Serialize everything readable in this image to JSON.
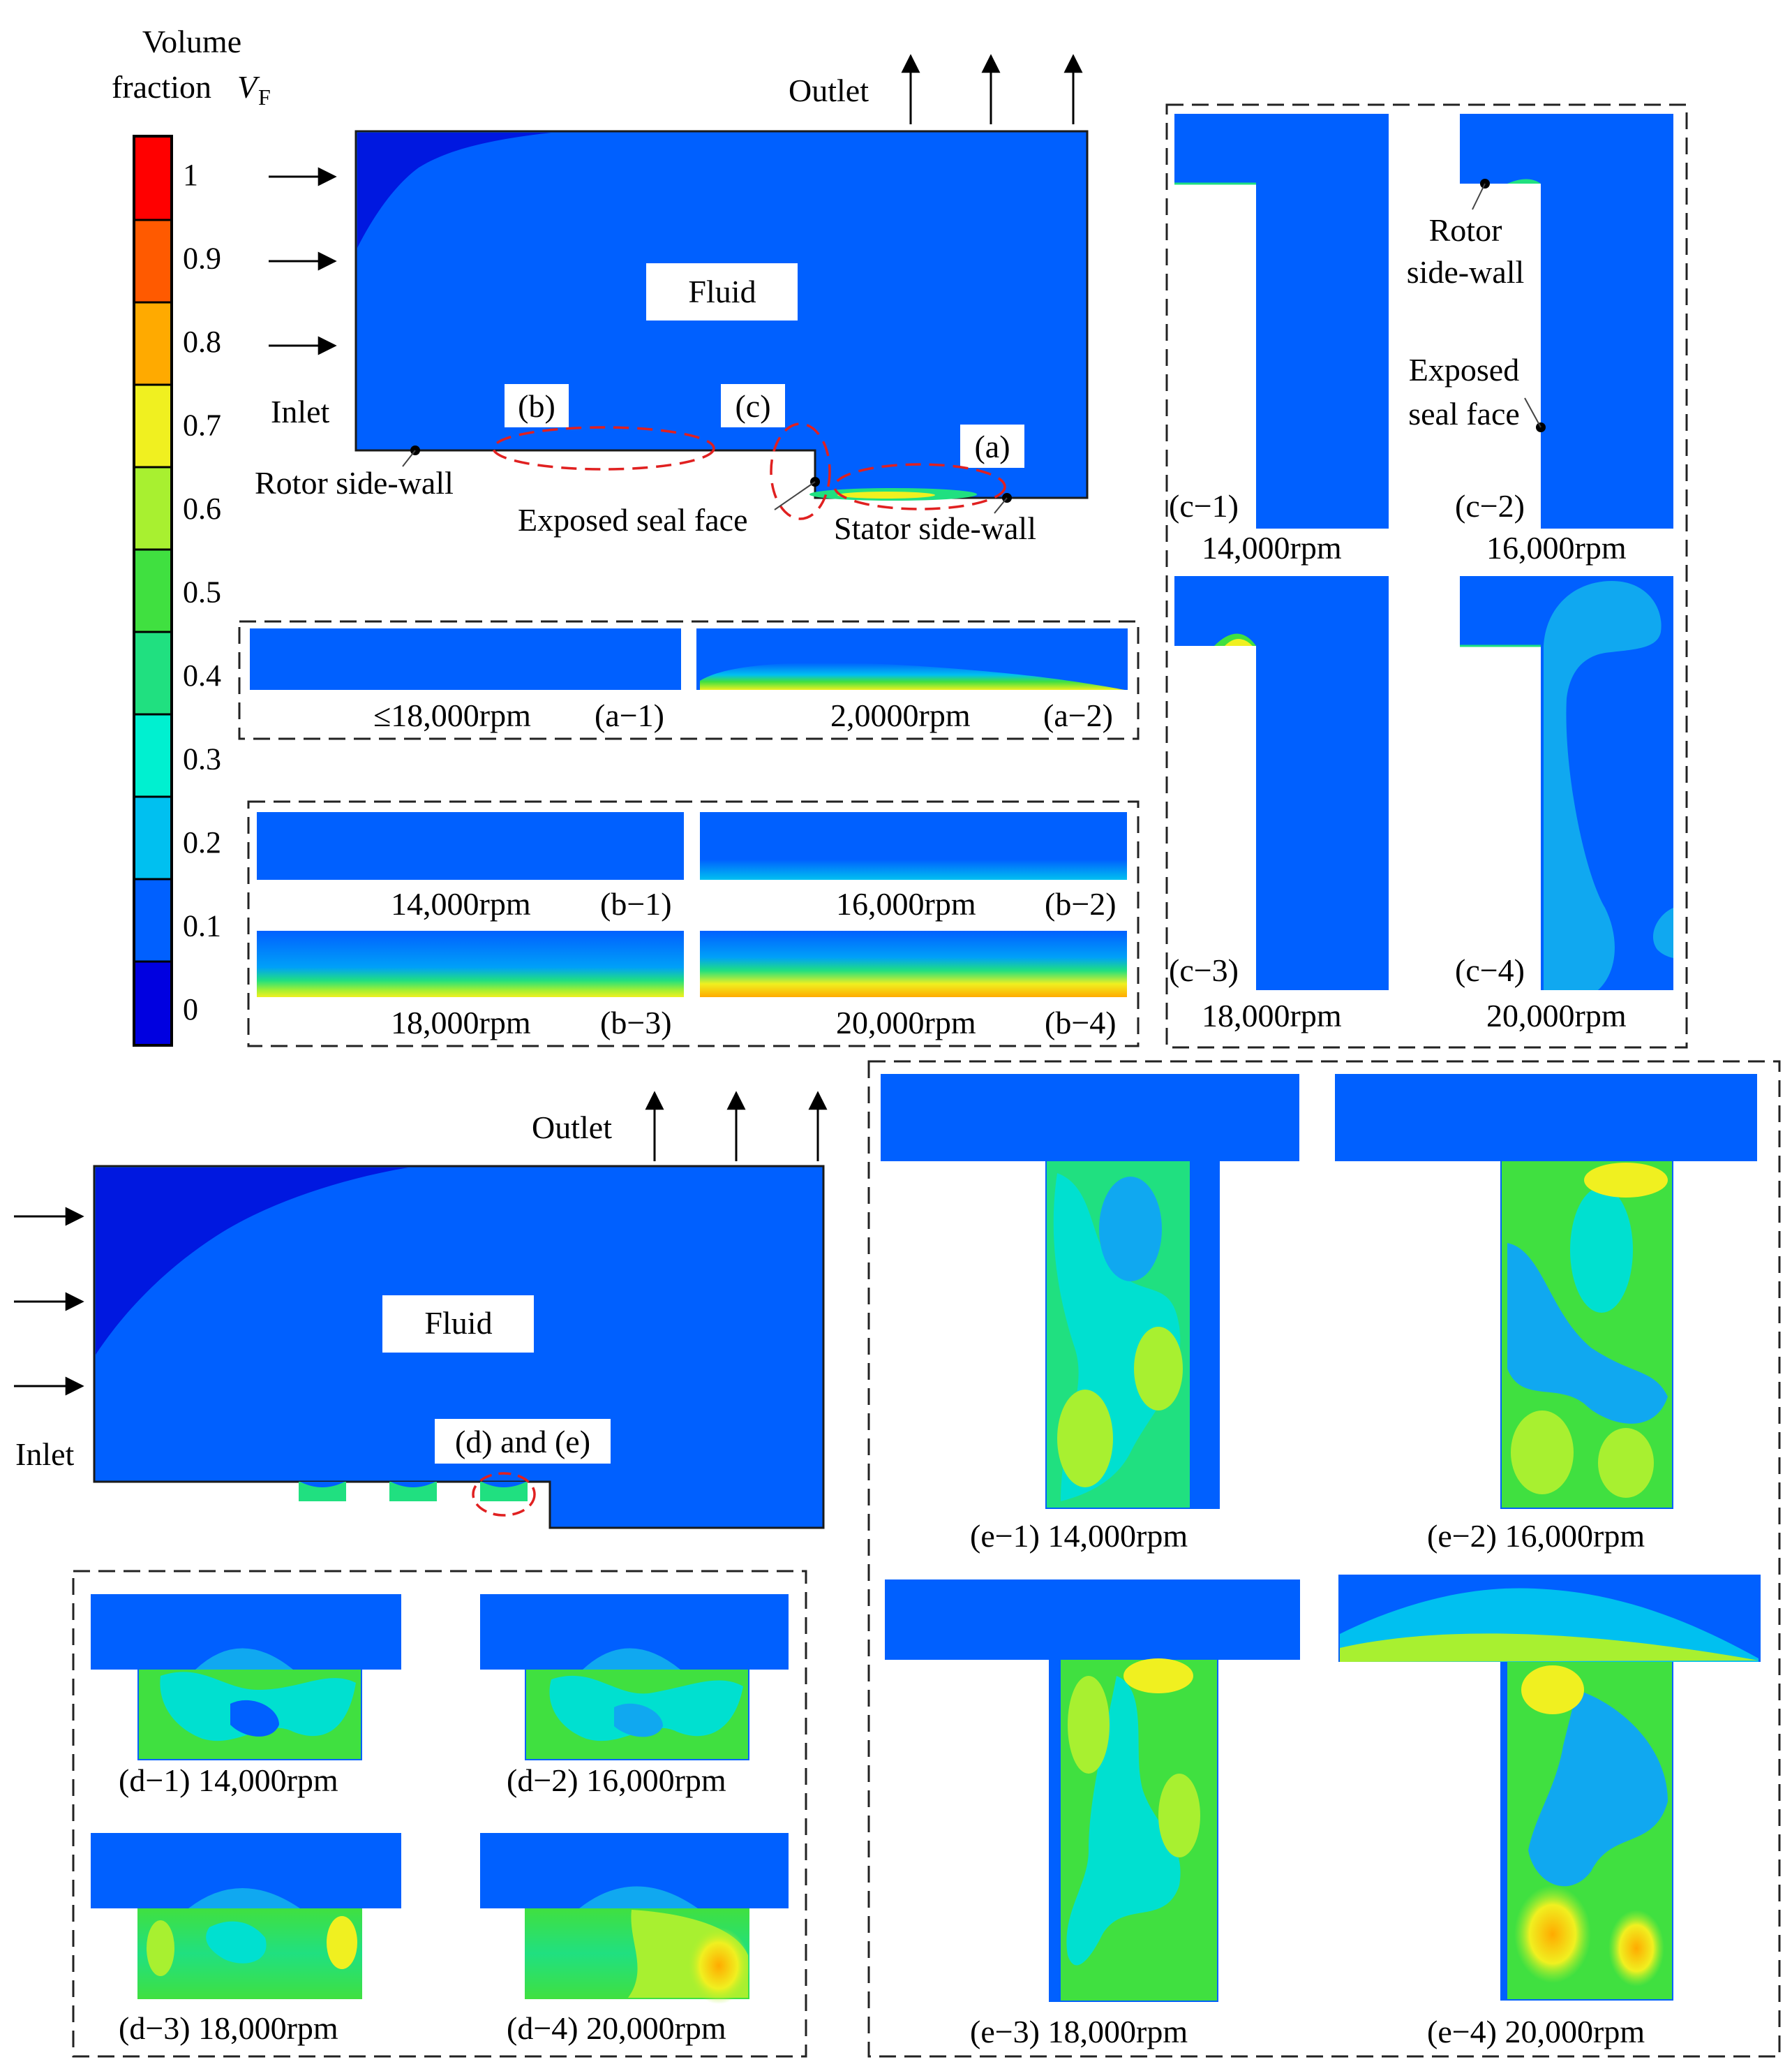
{
  "colorbar": {
    "title_line1": "Volume",
    "title_line2": "fraction",
    "title_symbol": "V",
    "title_subscript": "F",
    "ticks": [
      "1",
      "0.9",
      "0.8",
      "0.7",
      "0.6",
      "0.5",
      "0.4",
      "0.3",
      "0.2",
      "0.1",
      "0"
    ],
    "colors": [
      "#ff0000",
      "#ff5a00",
      "#ffaa00",
      "#f0f020",
      "#a8f030",
      "#40e040",
      "#20e080",
      "#00f0d0",
      "#00c0f0",
      "#0060ff",
      "#0000e0"
    ]
  },
  "top_diagram": {
    "outlet_label": "Outlet",
    "inlet_label": "Inlet",
    "fluid_label": "Fluid",
    "rotor_label": "Rotor side-wall",
    "seal_label": "Exposed seal face",
    "stator_label": "Stator side-wall",
    "mark_a": "(a)",
    "mark_b": "(b)",
    "mark_c": "(c)"
  },
  "panel_a": [
    {
      "speed": "≤18,000rpm",
      "id": "(a−1)"
    },
    {
      "speed": "2,0000rpm",
      "id": "(a−2)"
    }
  ],
  "panel_b": [
    {
      "speed": "14,000rpm",
      "id": "(b−1)"
    },
    {
      "speed": "16,000rpm",
      "id": "(b−2)"
    },
    {
      "speed": "18,000rpm",
      "id": "(b−3)"
    },
    {
      "speed": "20,000rpm",
      "id": "(b−4)"
    }
  ],
  "panel_c": {
    "rotor_line1": "Rotor",
    "rotor_line2": "side-wall",
    "seal_line1": "Exposed",
    "seal_line2": "seal face",
    "items": [
      {
        "id": "(c−1)",
        "speed": "14,000rpm"
      },
      {
        "id": "(c−2)",
        "speed": "16,000rpm"
      },
      {
        "id": "(c−3)",
        "speed": "18,000rpm"
      },
      {
        "id": "(c−4)",
        "speed": "20,000rpm"
      }
    ]
  },
  "bottom_diagram": {
    "outlet_label": "Outlet",
    "inlet_label": "Inlet",
    "fluid_label": "Fluid",
    "mark_de": "(d) and (e)"
  },
  "panel_d": [
    "(d−1) 14,000rpm",
    "(d−2) 16,000rpm",
    "(d−3) 18,000rpm",
    "(d−4) 20,000rpm"
  ],
  "panel_e": [
    "(e−1) 14,000rpm",
    "(e−2) 16,000rpm",
    "(e−3) 18,000rpm",
    "(e−4) 20,000rpm"
  ]
}
